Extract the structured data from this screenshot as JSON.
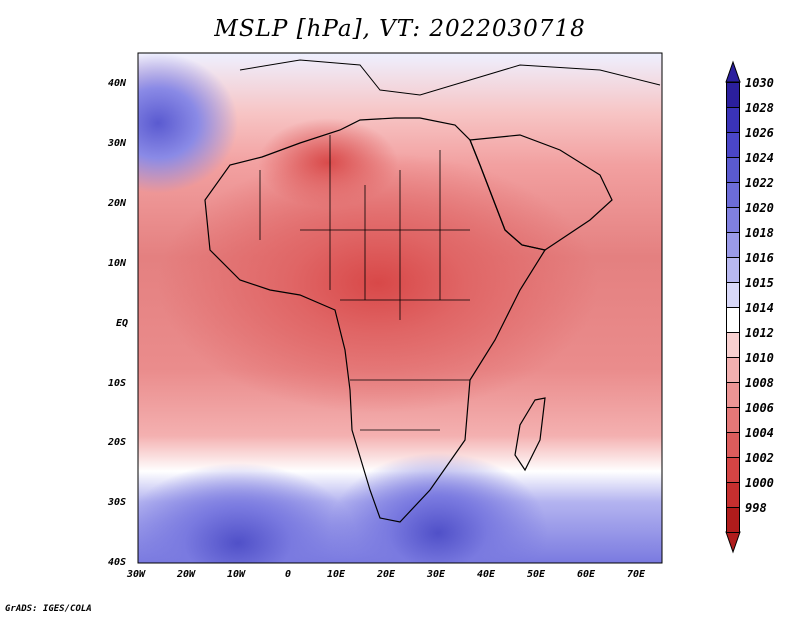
{
  "title": "MSLP [hPa], VT: 2022030718",
  "credit": "GrADS: IGES/COLA",
  "y_axis_labels": [
    "40N",
    "30N",
    "20N",
    "10N",
    "EQ",
    "10S",
    "20S",
    "30S",
    "40S"
  ],
  "x_axis_labels": [
    "30W",
    "20W",
    "10W",
    "0",
    "10E",
    "20E",
    "30E",
    "40E",
    "50E",
    "60E",
    "70E"
  ],
  "colorbar": {
    "labels": [
      "1030",
      "1028",
      "1026",
      "1024",
      "1022",
      "1020",
      "1018",
      "1016",
      "1015",
      "1014",
      "1012",
      "1010",
      "1008",
      "1006",
      "1004",
      "1002",
      "1000",
      "998"
    ],
    "colors": [
      "#2b1f9e",
      "#3a33b8",
      "#4a46c8",
      "#5a5ad0",
      "#6c6cd8",
      "#8080e0",
      "#9a9ae8",
      "#b8b8f0",
      "#d8d8f8",
      "#ffffff",
      "#f8d0d0",
      "#f2b0b0",
      "#ec9494",
      "#e47878",
      "#dc5c5c",
      "#d44444",
      "#c62f2f",
      "#b01c1c"
    ]
  }
}
